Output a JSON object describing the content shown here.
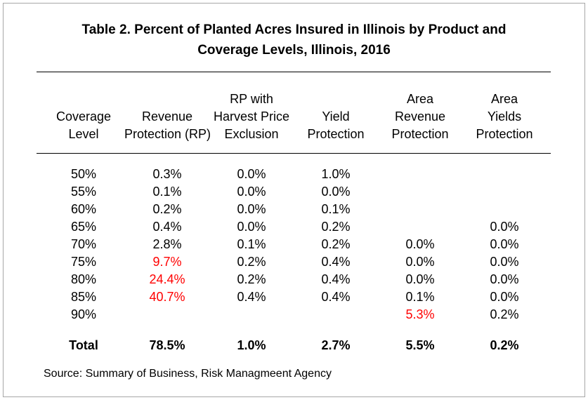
{
  "title": {
    "line1": "Table 2.  Percent of Planted Acres Insured in Illinois by Product and",
    "line2": "Coverage Levels, Illinois, 2016"
  },
  "headers": [
    [
      "Coverage",
      "Level"
    ],
    [
      "Revenue",
      "Protection (RP)"
    ],
    [
      "RP with",
      "Harvest Price",
      "Exclusion"
    ],
    [
      "Yield",
      "Protection"
    ],
    [
      "Area",
      "Revenue",
      "Protection"
    ],
    [
      "Area",
      "Yields",
      "Protection"
    ]
  ],
  "rows": [
    [
      "50%",
      "0.3%",
      "0.0%",
      "1.0%",
      "",
      ""
    ],
    [
      "55%",
      "0.1%",
      "0.0%",
      "0.0%",
      "",
      ""
    ],
    [
      "60%",
      "0.2%",
      "0.0%",
      "0.1%",
      "",
      ""
    ],
    [
      "65%",
      "0.4%",
      "0.0%",
      "0.2%",
      "",
      "0.0%"
    ],
    [
      "70%",
      "2.8%",
      "0.1%",
      "0.2%",
      "0.0%",
      "0.0%"
    ],
    [
      "75%",
      "9.7%",
      "0.2%",
      "0.4%",
      "0.0%",
      "0.0%"
    ],
    [
      "80%",
      "24.4%",
      "0.2%",
      "0.4%",
      "0.0%",
      "0.0%"
    ],
    [
      "85%",
      "40.7%",
      "0.4%",
      "0.4%",
      "0.1%",
      "0.0%"
    ],
    [
      "90%",
      "",
      "",
      "",
      "5.3%",
      "0.2%"
    ]
  ],
  "highlight_color": "#ff0000",
  "highlighted_cells": [
    [
      5,
      1
    ],
    [
      6,
      1
    ],
    [
      7,
      1
    ],
    [
      8,
      4
    ]
  ],
  "total": [
    "Total",
    "78.5%",
    "1.0%",
    "2.7%",
    "5.5%",
    "0.2%"
  ],
  "source": "Source:  Summary of Business, Risk Managmeent Agency"
}
